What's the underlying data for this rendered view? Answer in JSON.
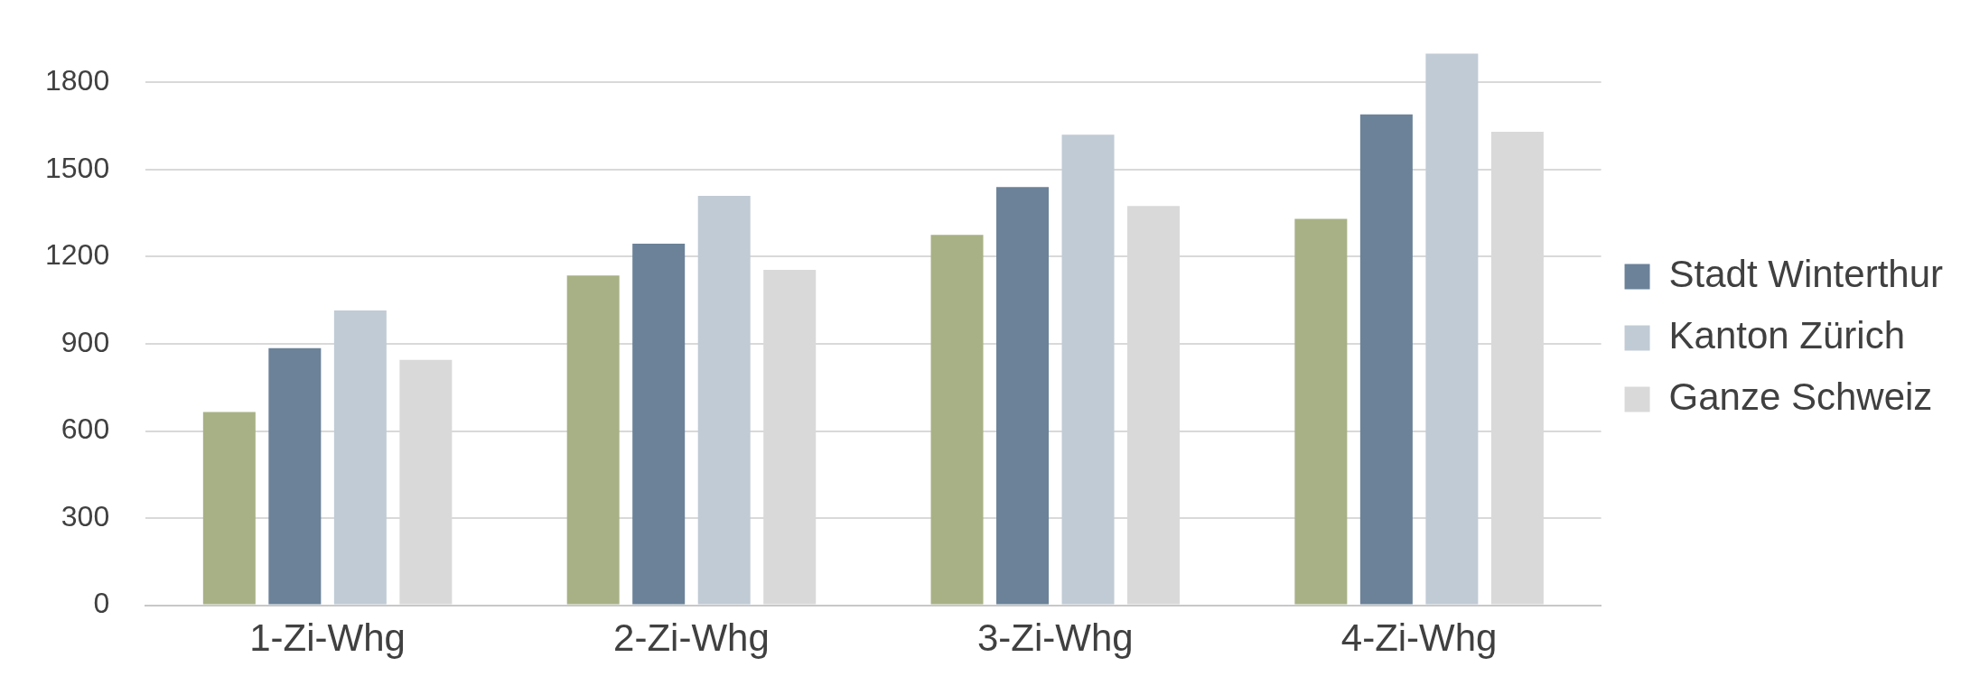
{
  "chart_data": {
    "type": "bar",
    "categories": [
      "1-Zi-Whg",
      "2-Zi-Whg",
      "3-Zi-Whg",
      "4-Zi-Whg"
    ],
    "series": [
      {
        "color": "#a8b185",
        "values": [
          665,
          1135,
          1275,
          1330
        ]
      },
      {
        "name": "Stadt Winterthur",
        "color": "#6b8299",
        "values": [
          885,
          1245,
          1440,
          1690
        ]
      },
      {
        "name": "Kanton Zürich",
        "color": "#c0cbd5",
        "values": [
          1015,
          1410,
          1620,
          1900
        ]
      },
      {
        "name": "Ganze Schweiz",
        "color": "#d9d9d9",
        "values": [
          845,
          1155,
          1375,
          1630
        ]
      }
    ],
    "ylim": [
      0,
      1900
    ],
    "yticks": [
      0,
      300,
      600,
      900,
      1200,
      1500,
      1800
    ],
    "grid": "y",
    "legend": "right"
  }
}
